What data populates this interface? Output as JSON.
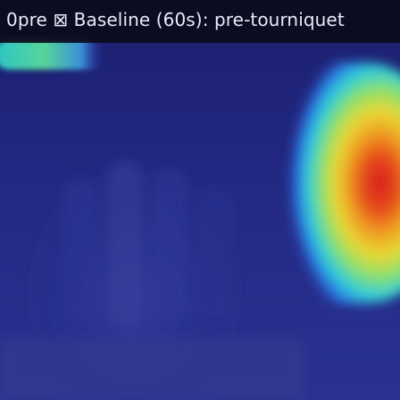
{
  "frame": {
    "title": "0pre ⊠ Baseline (60s): pre-tourniquet"
  },
  "overlay": {
    "colormap": "jet",
    "background_color": "#1d2270",
    "hotspot_peak_color": "#e0201a",
    "corner_blob_color": "#3fc8b0"
  }
}
